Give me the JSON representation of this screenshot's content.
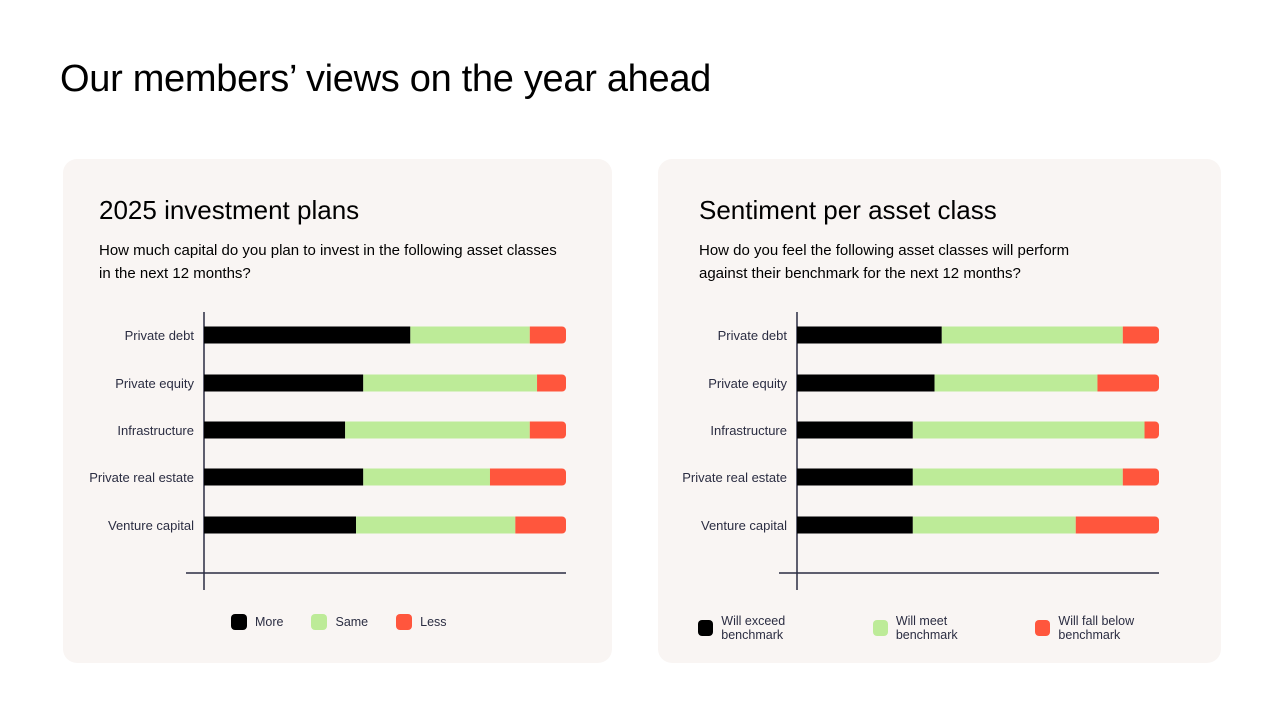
{
  "page_title": "Our members’ views on the year ahead",
  "colors": {
    "series": [
      "#000000",
      "#bdeb98",
      "#ff563d"
    ],
    "axis": "#2b2d42",
    "card": "#f9f5f3"
  },
  "chart_data": [
    {
      "type": "bar",
      "orientation": "horizontal",
      "stacked": true,
      "title": "2025 investment plans",
      "subtitle": "How much capital do you plan to invest in the following asset classes in the next 12 months?",
      "categories": [
        "Private debt",
        "Private equity",
        "Infrastructure",
        "Private real estate",
        "Venture capital"
      ],
      "series": [
        {
          "name": "More",
          "values": [
            57,
            44,
            39,
            44,
            42
          ]
        },
        {
          "name": "Same",
          "values": [
            33,
            48,
            51,
            35,
            44
          ]
        },
        {
          "name": "Less",
          "values": [
            10,
            8,
            10,
            21,
            14
          ]
        }
      ],
      "xlim": [
        0,
        100
      ],
      "legend": "bottom"
    },
    {
      "type": "bar",
      "orientation": "horizontal",
      "stacked": true,
      "title": "Sentiment per asset class",
      "subtitle": "How do you feel the following asset classes will perform against their benchmark for the next 12 months?",
      "categories": [
        "Private debt",
        "Private equity",
        "Infrastructure",
        "Private real estate",
        "Venture capital"
      ],
      "series": [
        {
          "name": "Will exceed benchmark",
          "values": [
            40,
            38,
            32,
            32,
            32
          ]
        },
        {
          "name": "Will meet benchmark",
          "values": [
            50,
            45,
            64,
            58,
            45
          ]
        },
        {
          "name": "Will fall below benchmark",
          "values": [
            10,
            17,
            4,
            10,
            23
          ]
        }
      ],
      "xlim": [
        0,
        100
      ],
      "legend": "bottom"
    }
  ]
}
